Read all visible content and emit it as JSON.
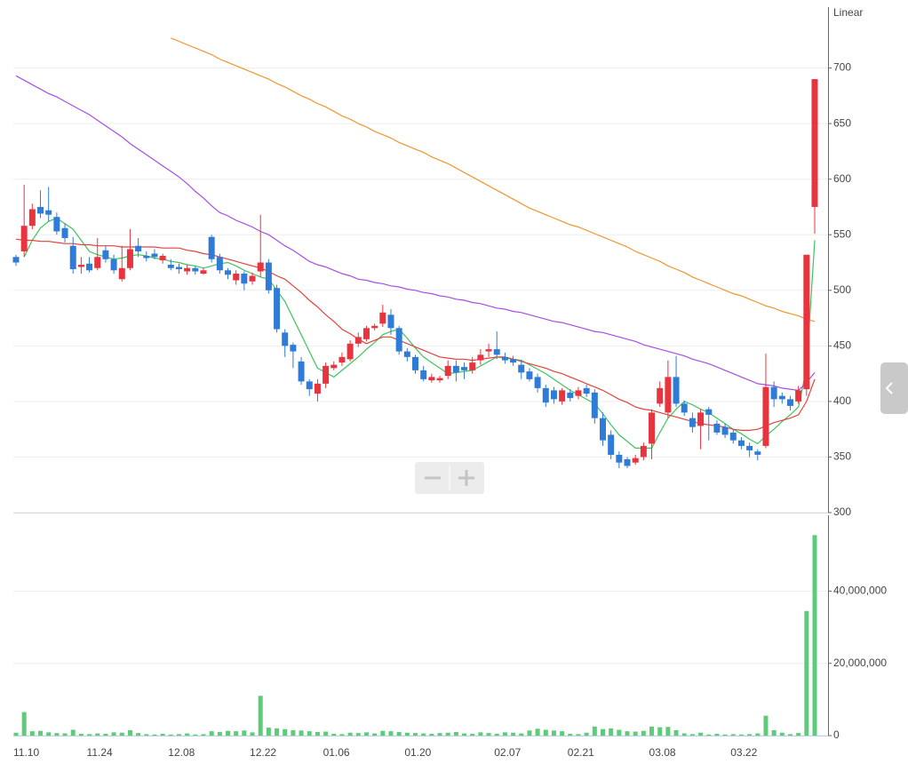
{
  "chart_data": [
    {
      "type": "candlestick",
      "scale_label": "Linear",
      "categories": [
        "11.10",
        null,
        null,
        null,
        null,
        null,
        null,
        null,
        null,
        "11.24",
        null,
        null,
        null,
        null,
        null,
        null,
        null,
        null,
        null,
        "12.08",
        null,
        null,
        null,
        null,
        null,
        null,
        null,
        null,
        null,
        "12.22",
        null,
        null,
        null,
        null,
        null,
        null,
        null,
        null,
        "01.06",
        null,
        null,
        null,
        null,
        null,
        null,
        null,
        null,
        null,
        "01.20",
        null,
        null,
        null,
        null,
        null,
        null,
        null,
        null,
        null,
        null,
        "02.07",
        null,
        null,
        null,
        null,
        null,
        null,
        null,
        null,
        "02.21",
        null,
        null,
        null,
        null,
        null,
        null,
        null,
        null,
        null,
        "03.08",
        null,
        null,
        null,
        null,
        null,
        null,
        null,
        null,
        null,
        "03.22",
        null,
        null,
        null,
        null,
        null,
        null,
        null,
        null,
        null,
        null
      ],
      "open": [
        530,
        535,
        558,
        575,
        572,
        566,
        556,
        540,
        521,
        524,
        520,
        536,
        528,
        510,
        520,
        540,
        531,
        533,
        527,
        523,
        521,
        517,
        520,
        515,
        548,
        530,
        518,
        509,
        515,
        508,
        517,
        525,
        502,
        462,
        451,
        436,
        418,
        407,
        416,
        430,
        435,
        438,
        452,
        456,
        466,
        470,
        478,
        466,
        445,
        440,
        428,
        419,
        419,
        423,
        432,
        431,
        428,
        437,
        445,
        447,
        440,
        438,
        433,
        427,
        422,
        412,
        410,
        400,
        408,
        405,
        412,
        408,
        385,
        370,
        352,
        348,
        345,
        350,
        362,
        398,
        390,
        422,
        398,
        385,
        378,
        393,
        380,
        377,
        372,
        365,
        360,
        355,
        360,
        413,
        405,
        402,
        400,
        411,
        575
      ],
      "high": [
        532,
        595,
        578,
        590,
        593,
        570,
        560,
        548,
        530,
        530,
        547,
        540,
        532,
        540,
        555,
        547,
        535,
        537,
        533,
        528,
        524,
        523,
        522,
        520,
        550,
        533,
        520,
        518,
        517,
        516,
        568,
        528,
        505,
        465,
        453,
        440,
        420,
        420,
        435,
        436,
        444,
        455,
        462,
        468,
        470,
        487,
        483,
        468,
        448,
        442,
        432,
        425,
        423,
        437,
        437,
        435,
        440,
        447,
        452,
        463,
        444,
        441,
        437,
        430,
        425,
        415,
        413,
        412,
        411,
        413,
        415,
        411,
        390,
        374,
        355,
        350,
        352,
        363,
        393,
        418,
        437,
        441,
        401,
        390,
        393,
        395,
        383,
        380,
        375,
        368,
        363,
        357,
        443,
        418,
        408,
        405,
        414,
        532,
        690
      ],
      "low": [
        522,
        530,
        555,
        565,
        562,
        550,
        543,
        515,
        515,
        516,
        518,
        525,
        515,
        508,
        518,
        530,
        526,
        528,
        524,
        518,
        515,
        514,
        514,
        514,
        525,
        515,
        510,
        505,
        500,
        505,
        512,
        497,
        462,
        440,
        430,
        415,
        405,
        400,
        412,
        428,
        432,
        436,
        449,
        454,
        464,
        467,
        460,
        442,
        436,
        425,
        418,
        417,
        417,
        420,
        418,
        420,
        425,
        433,
        440,
        438,
        434,
        432,
        420,
        418,
        408,
        395,
        398,
        397,
        400,
        402,
        404,
        380,
        360,
        348,
        340,
        340,
        343,
        347,
        348,
        395,
        385,
        395,
        387,
        372,
        357,
        365,
        370,
        367,
        362,
        357,
        350,
        347,
        358,
        395,
        398,
        392,
        398,
        405,
        551
      ],
      "close": [
        525,
        558,
        573,
        569,
        568,
        553,
        547,
        519,
        523,
        518,
        530,
        528,
        518,
        520,
        537,
        535,
        529,
        530,
        531,
        520,
        519,
        520,
        517,
        518,
        528,
        518,
        514,
        515,
        506,
        513,
        525,
        500,
        465,
        450,
        445,
        418,
        411,
        416,
        432,
        433,
        440,
        452,
        458,
        466,
        468,
        480,
        466,
        445,
        440,
        428,
        420,
        422,
        421,
        432,
        426,
        428,
        435,
        442,
        447,
        442,
        437,
        435,
        426,
        420,
        412,
        399,
        402,
        410,
        403,
        410,
        407,
        385,
        365,
        352,
        345,
        342,
        349,
        360,
        390,
        412,
        422,
        398,
        390,
        377,
        390,
        388,
        372,
        370,
        365,
        360,
        356,
        352,
        413,
        402,
        402,
        396,
        410,
        532,
        690
      ],
      "up_color": "#e8343f",
      "down_color": "#2f7bd8",
      "series": [
        {
          "color": "#3fc35e",
          "values": [
            null,
            530,
            545,
            556,
            562,
            565,
            560,
            555,
            545,
            535,
            532,
            530,
            528,
            529,
            531,
            532,
            531,
            529,
            528,
            526,
            525,
            523,
            522,
            520,
            522,
            524,
            525,
            522,
            518,
            515,
            512,
            510,
            500,
            490,
            475,
            460,
            445,
            430,
            426,
            422,
            428,
            434,
            440,
            447,
            453,
            460,
            463,
            465,
            457,
            448,
            440,
            435,
            430,
            425,
            426,
            427,
            428,
            432,
            436,
            440,
            439,
            438,
            437,
            433,
            429,
            425,
            420,
            415,
            410,
            406,
            402,
            398,
            389,
            379,
            370,
            364,
            358,
            358,
            358,
            372,
            385,
            393,
            400,
            397,
            393,
            390,
            385,
            380,
            375,
            371,
            366,
            362,
            369,
            375,
            382,
            388,
            395,
            430,
            545
          ]
        },
        {
          "color": "#e5403f",
          "values": [
            546,
            545,
            545,
            544,
            544,
            543,
            542,
            542,
            541,
            541,
            540,
            540,
            540,
            539,
            539,
            539,
            539,
            539,
            538,
            538,
            538,
            536,
            535,
            533,
            532,
            530,
            528,
            526,
            524,
            522,
            520,
            517,
            513,
            510,
            504,
            498,
            491,
            485,
            478,
            472,
            465,
            461,
            456,
            452,
            455,
            458,
            458,
            455,
            452,
            449,
            446,
            443,
            440,
            439,
            438,
            438,
            437,
            438,
            439,
            440,
            440,
            438,
            436,
            434,
            432,
            430,
            427,
            425,
            422,
            419,
            416,
            413,
            410,
            406,
            402,
            399,
            395,
            393,
            392,
            390,
            388,
            386,
            384,
            382,
            380,
            379,
            378,
            377,
            375,
            374,
            374,
            375,
            378,
            381,
            383,
            385,
            388,
            400,
            420
          ]
        },
        {
          "color": "#a64ee6",
          "values": [
            693,
            689,
            685,
            681,
            677,
            674,
            670,
            666,
            662,
            658,
            653,
            648,
            643,
            638,
            632,
            627,
            622,
            617,
            612,
            607,
            602,
            596,
            589,
            583,
            576,
            570,
            567,
            563,
            560,
            557,
            553,
            550,
            545,
            540,
            536,
            531,
            526,
            523,
            521,
            518,
            515,
            513,
            510,
            509,
            507,
            506,
            504,
            503,
            501,
            500,
            498,
            497,
            495,
            494,
            492,
            491,
            489,
            488,
            486,
            484,
            483,
            481,
            480,
            478,
            476,
            474,
            472,
            471,
            469,
            467,
            465,
            463,
            462,
            460,
            458,
            456,
            454,
            451,
            449,
            447,
            445,
            443,
            441,
            438,
            436,
            434,
            431,
            428,
            425,
            422,
            419,
            416,
            415,
            414,
            412,
            411,
            410,
            417,
            426
          ]
        },
        {
          "color": "#f0962f",
          "values": [
            null,
            null,
            null,
            null,
            null,
            null,
            null,
            null,
            null,
            null,
            null,
            null,
            null,
            null,
            null,
            null,
            null,
            null,
            null,
            727,
            724,
            721,
            718,
            715,
            712,
            708,
            705,
            702,
            699,
            696,
            693,
            690,
            686,
            683,
            679,
            675,
            672,
            668,
            665,
            661,
            657,
            654,
            650,
            647,
            643,
            640,
            637,
            633,
            630,
            627,
            624,
            620,
            617,
            614,
            610,
            606,
            602,
            598,
            594,
            590,
            586,
            582,
            578,
            574,
            571,
            568,
            565,
            562,
            559,
            557,
            554,
            551,
            548,
            545,
            542,
            539,
            535,
            532,
            529,
            526,
            522,
            519,
            516,
            512,
            509,
            506,
            503,
            500,
            497,
            495,
            492,
            489,
            486,
            484,
            481,
            479,
            477,
            474,
            472
          ]
        }
      ],
      "ylim": [
        300,
        750
      ],
      "yticks": [
        300,
        350,
        400,
        450,
        500,
        550,
        600,
        650,
        700
      ],
      "grid": true
    },
    {
      "type": "bar",
      "color": "#5dcb78",
      "values": [
        800000,
        6500000,
        1200000,
        1300000,
        900000,
        700000,
        600000,
        1600000,
        500000,
        400000,
        600000,
        500000,
        900000,
        800000,
        1500000,
        700000,
        400000,
        300000,
        500000,
        300000,
        400000,
        600000,
        300000,
        400000,
        1200000,
        1000000,
        1300000,
        1200000,
        1400000,
        900000,
        11000000,
        2200000,
        2000000,
        1800000,
        1500000,
        1400000,
        1200000,
        1000000,
        1100000,
        500000,
        400000,
        800000,
        700000,
        900000,
        600000,
        1300000,
        1200000,
        1000000,
        800000,
        700000,
        600000,
        500000,
        700000,
        800000,
        1000000,
        600000,
        500000,
        900000,
        700000,
        500000,
        900000,
        800000,
        600000,
        1400000,
        1900000,
        1600000,
        1400000,
        1200000,
        500000,
        400000,
        800000,
        2500000,
        1800000,
        2000000,
        1600000,
        1200000,
        1100000,
        1300000,
        2500000,
        2300000,
        2400000,
        1500000,
        600000,
        400000,
        800000,
        300000,
        500000,
        300000,
        400000,
        300000,
        400000,
        600000,
        5500000,
        1500000,
        800000,
        400000,
        700000,
        34500000,
        55500000
      ],
      "ylim": [
        0,
        61000000
      ],
      "yticks": [
        0,
        {
          "value": 20000000,
          "label": "20,000,000"
        },
        {
          "value": 40000000,
          "label": "40,000,000"
        }
      ],
      "grid": true
    }
  ]
}
